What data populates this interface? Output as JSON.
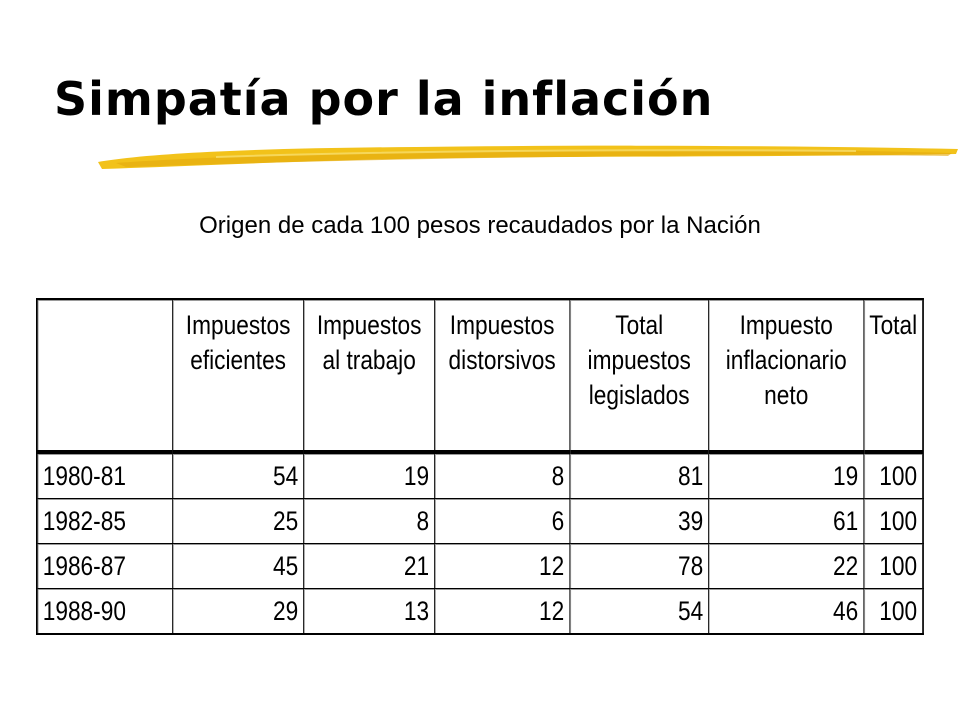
{
  "slide": {
    "title": "Simpatía por la inflación",
    "subtitle": "Origen de cada 100 pesos recaudados por la Nación",
    "accent_color": "#f2c21a"
  },
  "table": {
    "headers": [
      "",
      "Impuestos eficientes",
      "Impuestos al trabajo",
      "Impuestos distorsivos",
      "Total impuestos legislados",
      "Impuesto inflacionario neto",
      "Total"
    ],
    "rows": [
      {
        "period": "1980-81",
        "values": [
          "54",
          "19",
          "8",
          "81",
          "19",
          "100"
        ]
      },
      {
        "period": "1982-85",
        "values": [
          "25",
          "8",
          "6",
          "39",
          "61",
          "100"
        ]
      },
      {
        "period": "1986-87",
        "values": [
          "45",
          "21",
          "12",
          "78",
          "22",
          "100"
        ]
      },
      {
        "period": "1988-90",
        "values": [
          "29",
          "13",
          "12",
          "54",
          "46",
          "100"
        ]
      }
    ]
  }
}
